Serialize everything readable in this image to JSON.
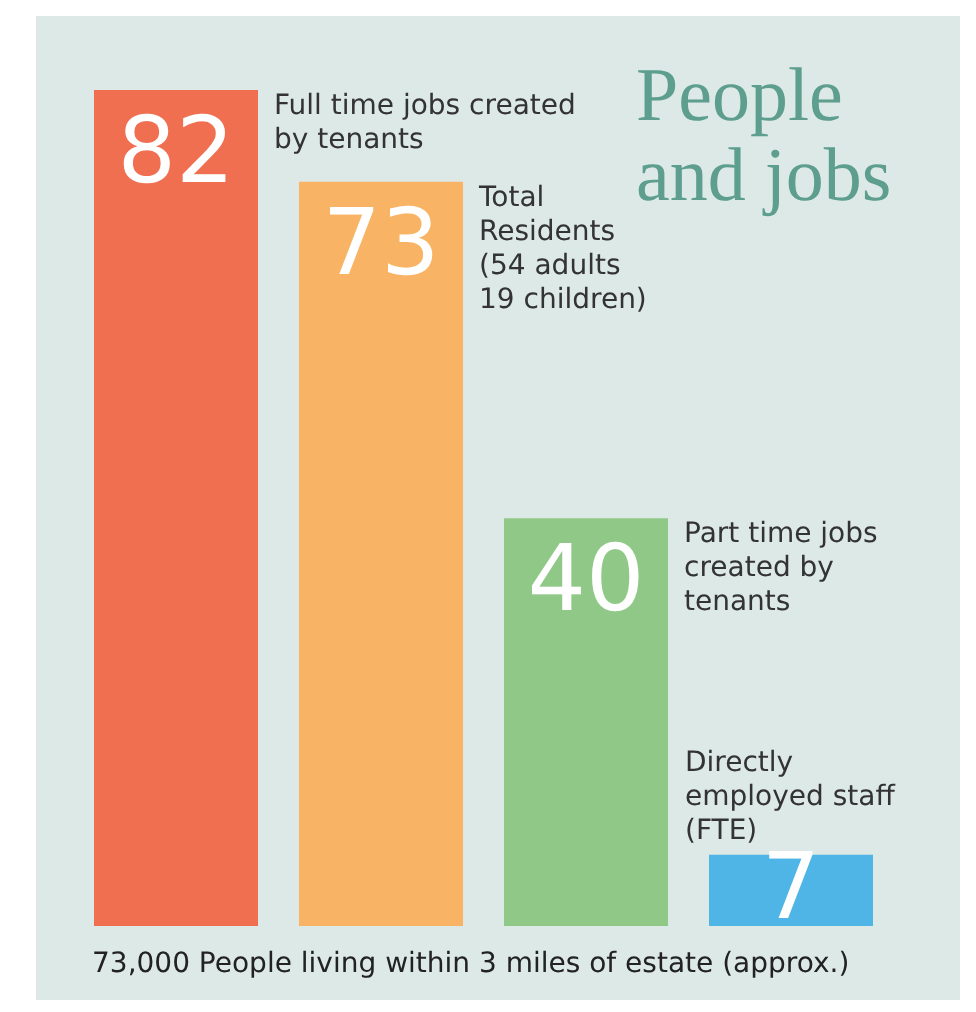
{
  "chart_data": {
    "type": "bar",
    "title": "People and jobs",
    "categories": [
      null,
      null,
      null,
      null
    ],
    "stacked": true,
    "series": [
      {
        "name": "Full time jobs created by tenants",
        "color": "#ef6f50",
        "values": [
          82,
          null,
          null,
          null
        ]
      },
      {
        "name": "Total Residents (54 adults 19 children)",
        "color": "#f8b464",
        "values": [
          null,
          73,
          null,
          null
        ]
      },
      {
        "name": "Part time jobs created by tenants",
        "color": "#90c987",
        "values": [
          null,
          null,
          40,
          null
        ]
      },
      {
        "name": "Directly employed staff (FTE)",
        "color": "#4fb5e6",
        "values": [
          null,
          null,
          null,
          7
        ]
      }
    ],
    "data_labels": true,
    "annotations": [
      "73,000 People living within 3 miles of estate (approx.)"
    ]
  }
}
